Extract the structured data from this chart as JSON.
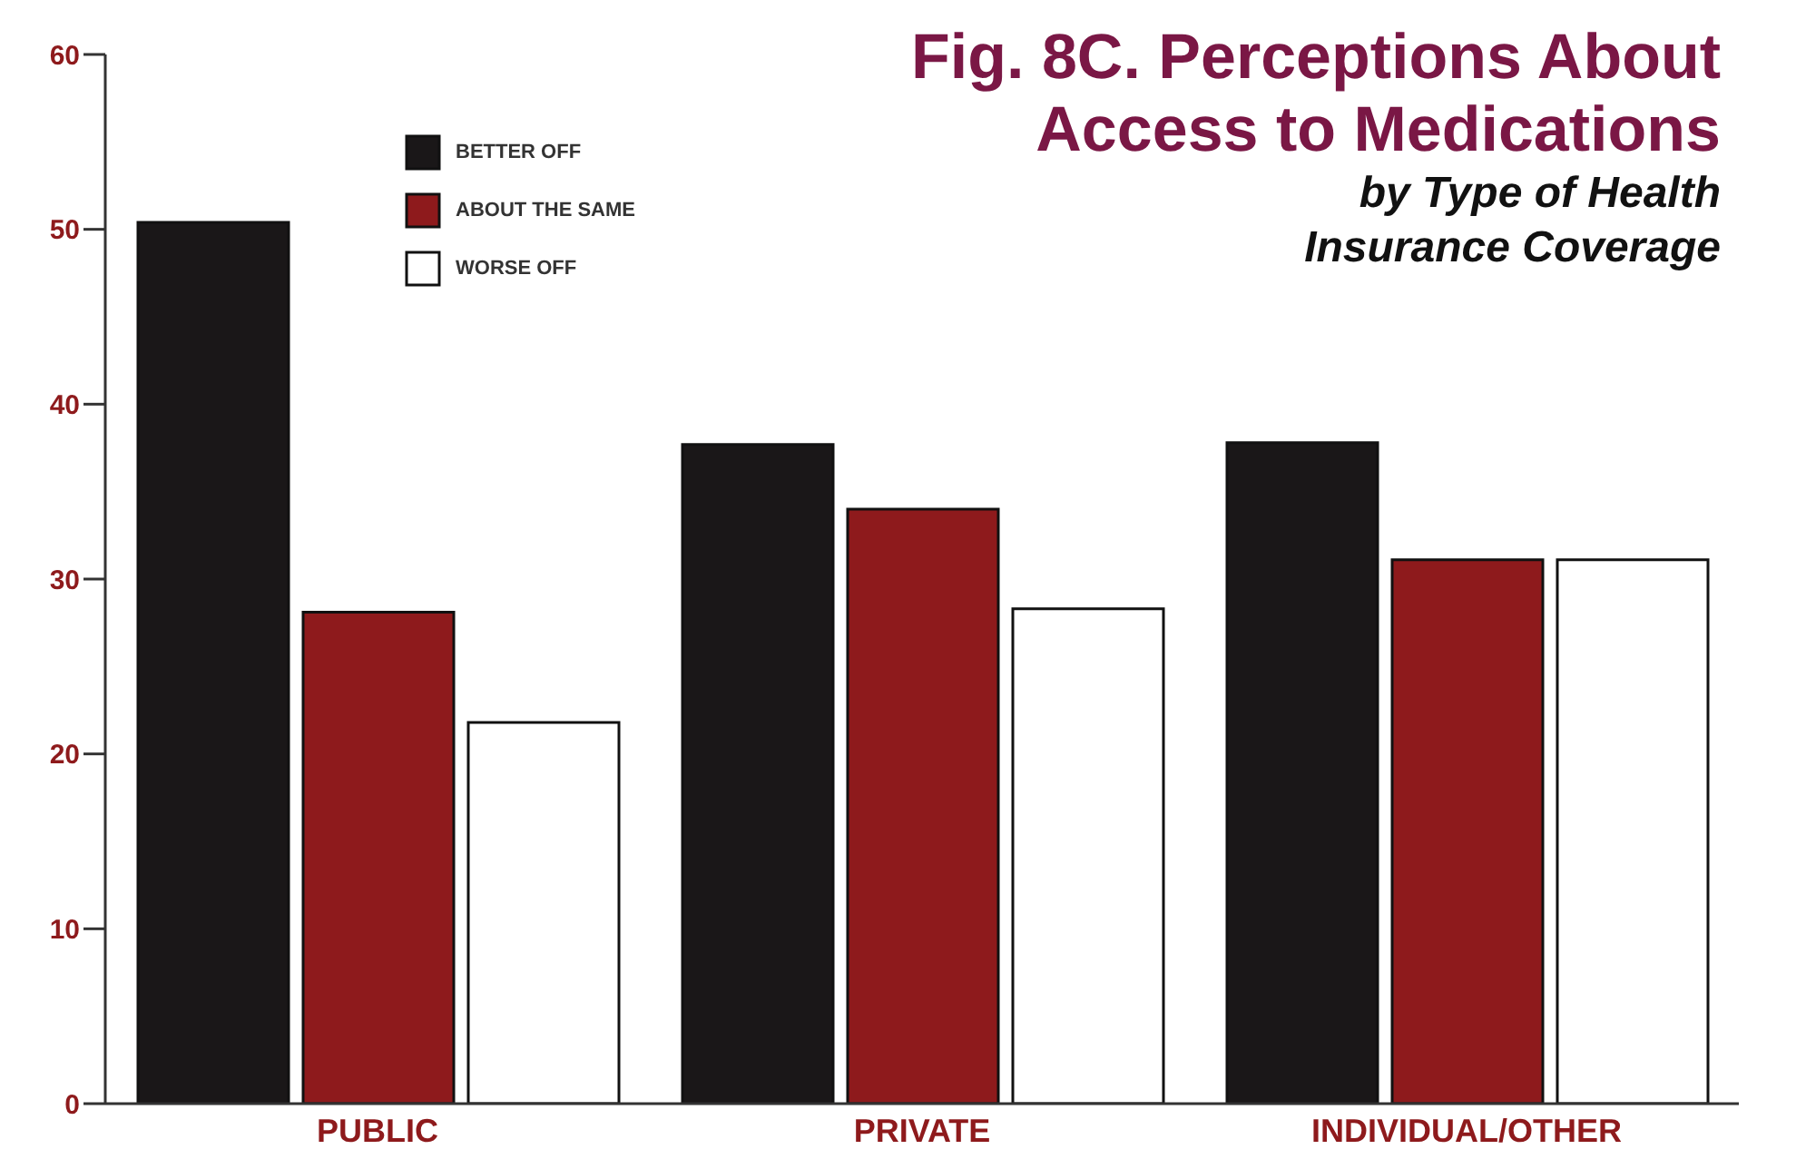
{
  "chart_data": {
    "type": "bar",
    "title": "Fig. 8C. Perceptions About Access to Medications",
    "subtitle": "by Type of Health Insurance Coverage",
    "categories": [
      "PUBLIC",
      "PRIVATE",
      "INDIVIDUAL/OTHER"
    ],
    "series": [
      {
        "name": "BETTER OFF",
        "color": "#1a1718",
        "values": [
          50.4,
          37.7,
          37.8
        ]
      },
      {
        "name": "ABOUT THE SAME",
        "color": "#8e1a1c",
        "values": [
          28.1,
          34.0,
          31.1
        ]
      },
      {
        "name": "WORSE OFF",
        "color": "#ffffff",
        "values": [
          21.8,
          28.3,
          31.1
        ]
      }
    ],
    "ylim": [
      0,
      60
    ],
    "yticks": [
      0,
      10,
      20,
      30,
      40,
      50,
      60
    ],
    "grid": false,
    "legend": "top left"
  }
}
